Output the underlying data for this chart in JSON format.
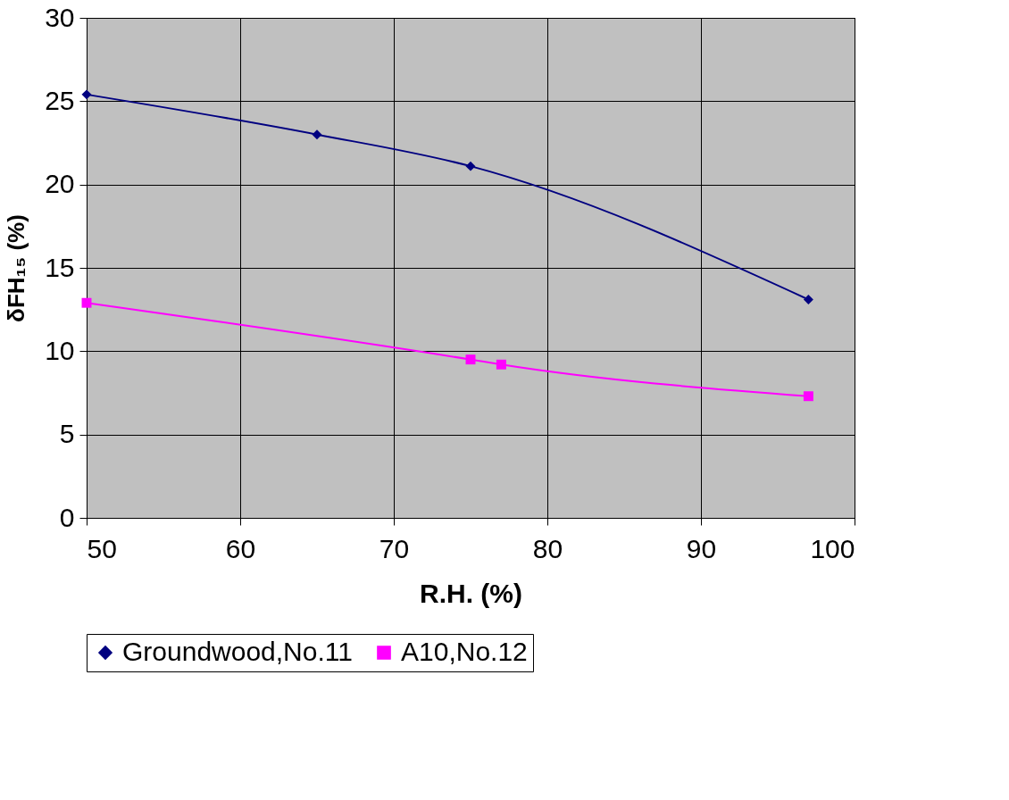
{
  "chart_data": {
    "type": "line",
    "xlabel": "R.H. (%)",
    "ylabel": "δFH₁₅ (%)",
    "xlim": [
      50,
      100
    ],
    "xticks": [
      50,
      60,
      70,
      80,
      90,
      100
    ],
    "ylim": [
      0,
      30
    ],
    "yticks": [
      0,
      5,
      10,
      15,
      20,
      25,
      30
    ],
    "grid": true,
    "legend": "bottom",
    "series": [
      {
        "name": "Groundwood,No.11",
        "color": "#000080",
        "marker": "diamond",
        "x": [
          50,
          65,
          75,
          97
        ],
        "values": [
          25.4,
          23.0,
          21.1,
          13.1
        ]
      },
      {
        "name": "A10,No.12",
        "color": "#ff00ff",
        "marker": "square",
        "x": [
          50,
          75,
          77,
          97
        ],
        "values": [
          12.9,
          9.5,
          9.2,
          7.3
        ]
      }
    ]
  }
}
